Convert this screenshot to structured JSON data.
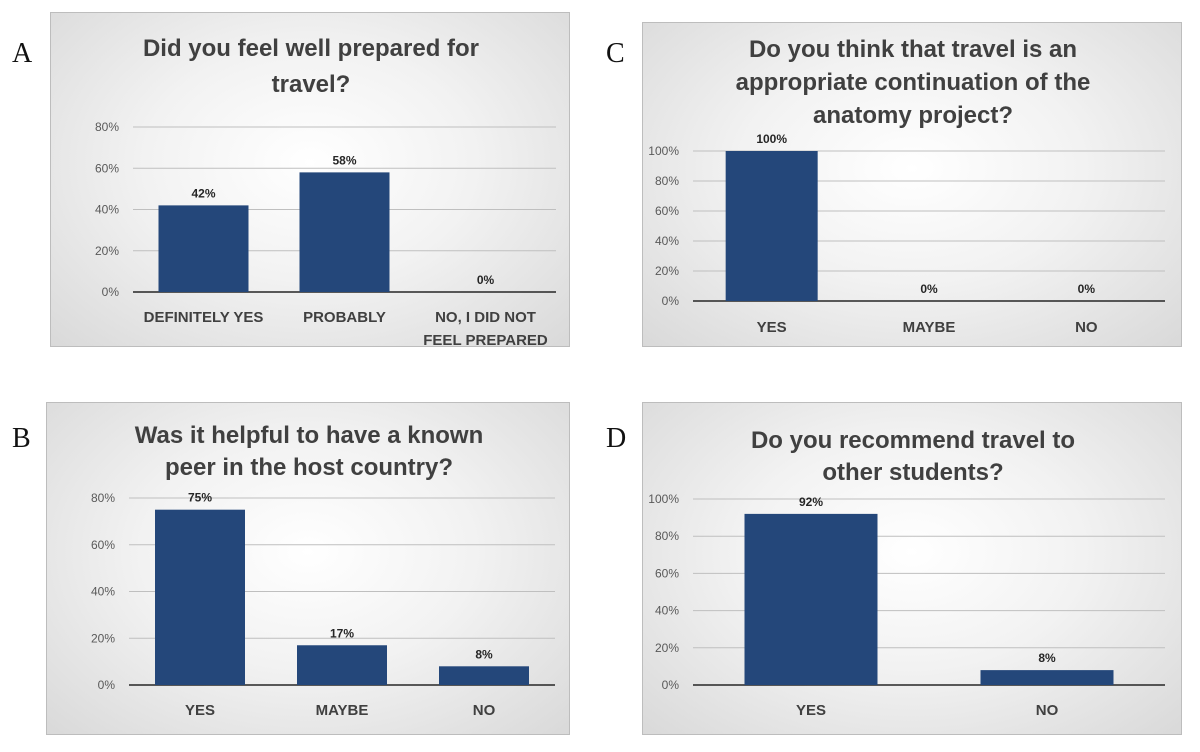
{
  "panel_labels": [
    "A",
    "B",
    "C",
    "D"
  ],
  "colors": {
    "bar": "#24477a",
    "grid": "#bfbfbf",
    "axis": "#262626"
  },
  "chart_data": [
    {
      "id": "A",
      "type": "bar",
      "title_lines": [
        "Did you feel well prepared for",
        "travel?"
      ],
      "categories": [
        [
          "DEFINITELY YES"
        ],
        [
          "PROBABLY"
        ],
        [
          "NO, I DID NOT",
          "FEEL PREPARED"
        ]
      ],
      "values": [
        42,
        58,
        0
      ],
      "data_labels": [
        "42%",
        "58%",
        "0%"
      ],
      "ylim": [
        0,
        80
      ],
      "yticks": [
        0,
        20,
        40,
        60,
        80
      ],
      "ytick_labels": [
        "0%",
        "20%",
        "40%",
        "60%",
        "80%"
      ],
      "grid": true
    },
    {
      "id": "B",
      "type": "bar",
      "title_lines": [
        "Was it helpful to have a known",
        "peer in the host country?"
      ],
      "categories": [
        [
          "YES"
        ],
        [
          "MAYBE"
        ],
        [
          "NO"
        ]
      ],
      "values": [
        75,
        17,
        8
      ],
      "data_labels": [
        "75%",
        "17%",
        "8%"
      ],
      "ylim": [
        0,
        80
      ],
      "yticks": [
        0,
        20,
        40,
        60,
        80
      ],
      "ytick_labels": [
        "0%",
        "20%",
        "40%",
        "60%",
        "80%"
      ],
      "grid": true
    },
    {
      "id": "C",
      "type": "bar",
      "title_lines": [
        "Do you think that travel is an",
        "appropriate continuation of the",
        "anatomy project?"
      ],
      "categories": [
        [
          "YES"
        ],
        [
          "MAYBE"
        ],
        [
          "NO"
        ]
      ],
      "values": [
        100,
        0,
        0
      ],
      "data_labels": [
        "100%",
        "0%",
        "0%"
      ],
      "ylim": [
        0,
        100
      ],
      "yticks": [
        0,
        20,
        40,
        60,
        80,
        100
      ],
      "ytick_labels": [
        "0%",
        "20%",
        "40%",
        "60%",
        "80%",
        "100%"
      ],
      "grid": true
    },
    {
      "id": "D",
      "type": "bar",
      "title_lines": [
        "Do you recommend travel to",
        "other students?"
      ],
      "categories": [
        [
          "YES"
        ],
        [
          "NO"
        ]
      ],
      "values": [
        92,
        8
      ],
      "data_labels": [
        "92%",
        "8%"
      ],
      "ylim": [
        0,
        100
      ],
      "yticks": [
        0,
        20,
        40,
        60,
        80,
        100
      ],
      "ytick_labels": [
        "0%",
        "20%",
        "40%",
        "60%",
        "80%",
        "100%"
      ],
      "grid": true
    }
  ]
}
